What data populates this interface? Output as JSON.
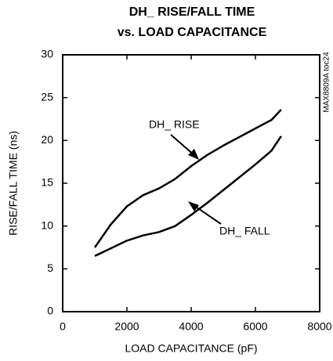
{
  "chart_data": {
    "type": "line",
    "title": "DH_ RISE/FALL TIME",
    "subtitle": "vs. LOAD CAPACITANCE",
    "x_label": "LOAD CAPACITANCE (pF)",
    "y_label": "RISE/FALL TIME (ns)",
    "figure_id": "MAX8809A toc24",
    "x": [
      1000,
      1500,
      2000,
      2500,
      3000,
      3500,
      4000,
      4500,
      5000,
      5500,
      6000,
      6500,
      6800
    ],
    "series": [
      {
        "name": "DH_ RISE",
        "color": "#000000",
        "values": [
          7.5,
          10.2,
          12.3,
          13.6,
          14.4,
          15.5,
          17.0,
          18.3,
          19.4,
          20.4,
          21.4,
          22.4,
          23.6
        ]
      },
      {
        "name": "DH_ FALL",
        "color": "#000000",
        "values": [
          6.5,
          7.4,
          8.3,
          8.9,
          9.3,
          10.0,
          11.3,
          12.7,
          14.2,
          15.7,
          17.2,
          18.8,
          20.5
        ]
      }
    ],
    "xlim": [
      0,
      8000
    ],
    "xticks": [
      0,
      2000,
      4000,
      6000,
      8000
    ],
    "ylim": [
      0,
      30
    ],
    "yticks": [
      0,
      5,
      10,
      15,
      20,
      25,
      30
    ],
    "grid": false
  }
}
